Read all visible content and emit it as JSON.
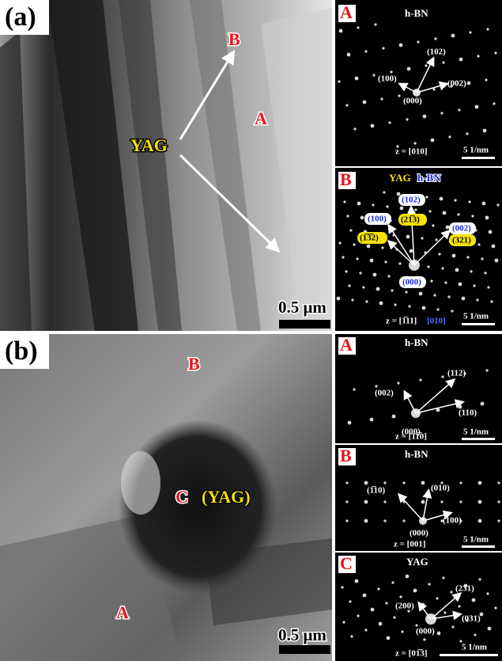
{
  "panel_a": {
    "label": "(a)",
    "image": {
      "label_B": "B",
      "label_A": "A",
      "label_YAG": "YAG",
      "scale_bar": "0.5 μm"
    },
    "insets": [
      {
        "letter": "A",
        "phases": [
          "h-BN"
        ],
        "spots": [
          "(100)",
          "(102)",
          "(002)",
          "(000)"
        ],
        "zone": [
          "z = [010]"
        ],
        "scale": "5 1/nm"
      },
      {
        "letter": "B",
        "phases": [
          "YAG",
          "h-BN"
        ],
        "spots": [
          "(102)",
          "(21̅3)",
          "(100)",
          "(002)",
          "(1̅3̅2)",
          "(321)",
          "(000)"
        ],
        "zone": [
          "z = [1̅11]",
          "[010]"
        ],
        "scale": "5 1/nm"
      }
    ]
  },
  "panel_b": {
    "label": "(b)",
    "image": {
      "label_B": "B",
      "label_C": "C",
      "label_C_phase": "(YAG)",
      "label_A": "A",
      "scale_bar": "0.5 μm"
    },
    "insets": [
      {
        "letter": "A",
        "phases": [
          "h-BN"
        ],
        "spots": [
          "(112)",
          "(002)",
          "(110)",
          "(000)"
        ],
        "zone": [
          "z = [11̅0]"
        ],
        "scale": "5 1/nm"
      },
      {
        "letter": "B",
        "phases": [
          "h-BN"
        ],
        "spots": [
          "(1̅10)",
          "(010)",
          "(100)",
          "(000)"
        ],
        "zone": [
          "z = [001]"
        ],
        "scale": "5 1/nm"
      },
      {
        "letter": "C",
        "phases": [
          "YAG"
        ],
        "spots": [
          "(200)",
          "(231)",
          "(031)",
          "(000)"
        ],
        "zone": [
          "z = [01̅3]"
        ],
        "scale": "5 1/nm"
      }
    ]
  }
}
